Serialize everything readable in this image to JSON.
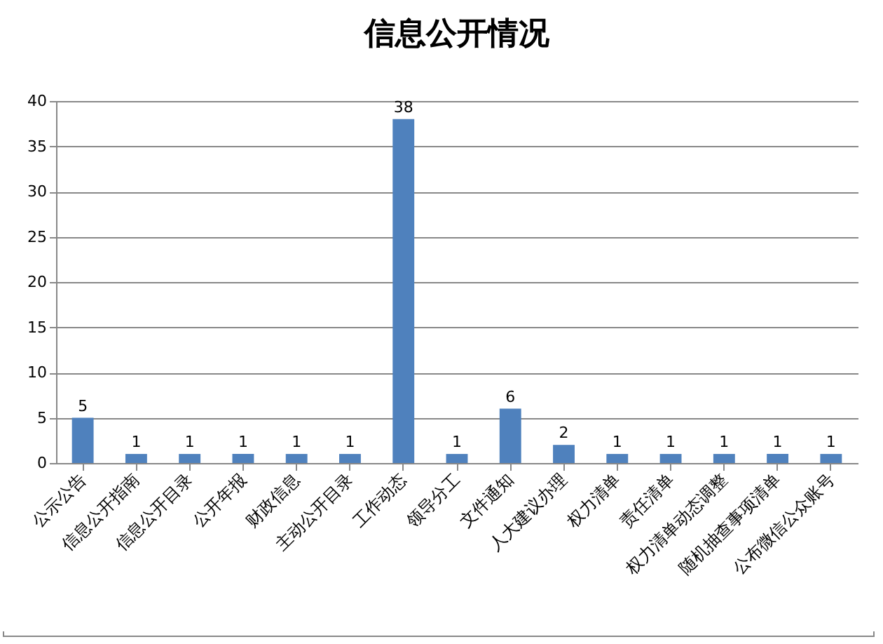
{
  "chart_data": {
    "type": "bar",
    "title": "信息公开情况",
    "categories": [
      "公示公告",
      "信息公开指南",
      "信息公开目录",
      "公开年报",
      "财政信息",
      "主动公开目录",
      "工作动态",
      "领导分工",
      "文件通知",
      "人大建议办理",
      "权力清单",
      "责任清单",
      "权力清单动态调整",
      "随机抽查事项清单",
      "公布微信公众账号"
    ],
    "values": [
      5,
      1,
      1,
      1,
      1,
      1,
      38,
      1,
      6,
      2,
      1,
      1,
      1,
      1,
      1
    ],
    "color": "#4f81bd",
    "ylim": [
      0,
      40
    ],
    "yticks": [
      0,
      5,
      10,
      15,
      20,
      25,
      30,
      35,
      40
    ],
    "grid": "y",
    "data_labels": true
  }
}
